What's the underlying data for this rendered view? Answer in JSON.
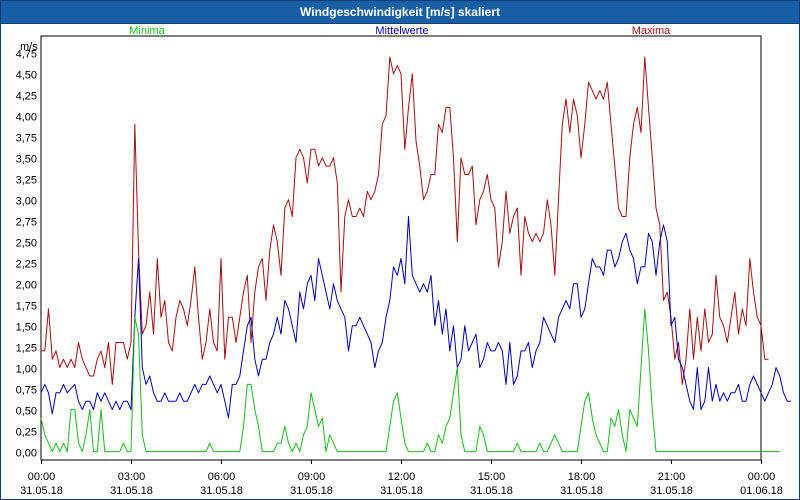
{
  "window": {
    "title": "Windgeschwindigkeit [m/s] skaliert"
  },
  "colors": {
    "minima": "#1db81d",
    "mittel": "#0000b4",
    "maxima": "#a01010",
    "titlebar": "#1a5ea5"
  },
  "chart_data": {
    "type": "line",
    "title": "Windgeschwindigkeit [m/s] skaliert",
    "ylabel": "m/s",
    "ylim": [
      -0.1,
      4.95
    ],
    "yticks": [
      "0,00",
      "0,25",
      "0,50",
      "0,75",
      "1,00",
      "1,25",
      "1,50",
      "1,75",
      "2,00",
      "2,25",
      "2,50",
      "2,75",
      "3,00",
      "3,25",
      "3,50",
      "3,75",
      "4,00",
      "4,25",
      "4,50",
      "4,75"
    ],
    "ytick_values": [
      0,
      0.25,
      0.5,
      0.75,
      1,
      1.25,
      1.5,
      1.75,
      2,
      2.25,
      2.5,
      2.75,
      3,
      3.25,
      3.5,
      3.75,
      4,
      4.25,
      4.5,
      4.75
    ],
    "xlim": [
      0,
      24
    ],
    "xticks": [
      {
        "hours": 0,
        "time": "00:00",
        "date": "31.05.18"
      },
      {
        "hours": 3,
        "time": "03:00",
        "date": "31.05.18"
      },
      {
        "hours": 6,
        "time": "06:00",
        "date": "31.05.18"
      },
      {
        "hours": 9,
        "time": "09:00",
        "date": "31.05.18"
      },
      {
        "hours": 12,
        "time": "12:00",
        "date": "31.05.18"
      },
      {
        "hours": 15,
        "time": "15:00",
        "date": "31.05.18"
      },
      {
        "hours": 18,
        "time": "18:00",
        "date": "31.05.18"
      },
      {
        "hours": 21,
        "time": "21:00",
        "date": "31.05.18"
      },
      {
        "hours": 24,
        "time": "00:00",
        "date": "01.06.18"
      }
    ],
    "x_interval_hours": 0.125,
    "series": [
      {
        "name": "Maxima",
        "color": "#a01010",
        "values": [
          1.2,
          1.2,
          1.7,
          1.1,
          1.2,
          1.0,
          1.1,
          1.0,
          1.1,
          1.0,
          1.3,
          1.1,
          1.0,
          0.9,
          0.9,
          1.1,
          1.2,
          1.0,
          1.3,
          0.8,
          1.3,
          1.3,
          1.3,
          1.1,
          1.3,
          3.9,
          2.4,
          1.4,
          1.5,
          1.9,
          1.4,
          2.3,
          1.6,
          1.8,
          1.3,
          1.2,
          1.6,
          1.8,
          1.7,
          1.5,
          1.8,
          2.2,
          1.6,
          1.1,
          1.3,
          1.7,
          1.3,
          1.2,
          2.3,
          1.1,
          1.6,
          1.6,
          1.3,
          1.6,
          1.9,
          2.1,
          1.3,
          1.9,
          2.2,
          2.3,
          1.8,
          2.4,
          2.7,
          2.5,
          2.1,
          2.9,
          3.0,
          2.8,
          3.5,
          3.6,
          3.5,
          3.2,
          3.6,
          3.6,
          3.4,
          3.5,
          3.4,
          3.4,
          3.5,
          3.2,
          1.9,
          2.8,
          3.0,
          2.8,
          2.8,
          2.9,
          2.8,
          3.1,
          3.0,
          3.1,
          3.3,
          3.9,
          4.0,
          4.7,
          4.5,
          4.6,
          4.5,
          3.6,
          4.1,
          4.5,
          3.7,
          3.4,
          3.0,
          3.1,
          3.3,
          3.3,
          3.9,
          3.8,
          4.1,
          4.1,
          3.5,
          2.5,
          3.5,
          3.3,
          3.3,
          3.4,
          2.7,
          3.0,
          3.1,
          3.3,
          3.0,
          2.9,
          2.2,
          2.5,
          3.1,
          2.6,
          2.8,
          2.9,
          2.1,
          2.8,
          2.6,
          2.5,
          2.6,
          2.5,
          2.6,
          3.0,
          2.7,
          2.1,
          3.0,
          3.9,
          4.2,
          3.8,
          4.2,
          4.0,
          3.5,
          3.9,
          4.4,
          4.3,
          4.2,
          4.3,
          4.2,
          4.4,
          3.9,
          3.4,
          2.9,
          2.8,
          2.8,
          3.5,
          3.9,
          4.1,
          3.8,
          4.7,
          4.1,
          3.5,
          2.9,
          2.7,
          1.8,
          1.9,
          1.6,
          1.1,
          1.3,
          0.8,
          1.1,
          1.7,
          1.1,
          1.6,
          1.2,
          1.7,
          1.3,
          1.4,
          2.1,
          1.6,
          1.5,
          1.3,
          1.6,
          1.9,
          1.4,
          1.7,
          1.5,
          2.3,
          1.9,
          1.6,
          1.5,
          1.1,
          1.1
        ]
      },
      {
        "name": "Mittelwerte",
        "color": "#0000b4",
        "values": [
          0.7,
          0.8,
          0.7,
          0.45,
          0.7,
          0.7,
          0.8,
          0.7,
          0.75,
          0.8,
          0.6,
          0.5,
          0.6,
          0.6,
          0.5,
          0.7,
          0.6,
          0.7,
          0.6,
          0.5,
          0.6,
          0.5,
          0.6,
          0.6,
          0.5,
          1.6,
          2.3,
          1.0,
          0.8,
          0.9,
          0.7,
          0.6,
          0.6,
          0.7,
          0.6,
          0.6,
          0.6,
          0.7,
          0.6,
          0.6,
          0.7,
          0.8,
          0.7,
          0.8,
          0.8,
          0.9,
          0.8,
          0.7,
          0.8,
          0.6,
          0.4,
          0.8,
          0.8,
          0.9,
          1.2,
          1.5,
          1.6,
          1.1,
          0.9,
          1.1,
          1.1,
          1.3,
          1.4,
          1.6,
          1.4,
          1.8,
          1.7,
          1.5,
          1.3,
          1.9,
          1.7,
          2.0,
          2.1,
          1.8,
          2.3,
          2.1,
          1.9,
          1.7,
          2.0,
          1.8,
          1.7,
          1.6,
          1.2,
          1.5,
          1.5,
          1.6,
          1.5,
          1.4,
          1.3,
          1.0,
          1.2,
          1.3,
          1.6,
          1.8,
          2.2,
          2.1,
          2.3,
          2.0,
          2.8,
          2.1,
          2.0,
          1.9,
          2.0,
          1.9,
          2.1,
          1.5,
          1.8,
          1.4,
          1.7,
          1.2,
          1.5,
          1.0,
          1.1,
          1.5,
          1.2,
          1.3,
          1.4,
          1.0,
          1.1,
          1.3,
          1.2,
          1.2,
          1.3,
          1.2,
          0.8,
          1.3,
          0.8,
          0.9,
          1.2,
          1.2,
          1.3,
          1.0,
          1.2,
          1.3,
          1.6,
          1.5,
          1.4,
          1.3,
          1.6,
          1.7,
          1.8,
          1.7,
          2.0,
          2.0,
          1.6,
          1.7,
          2.0,
          2.3,
          2.2,
          2.2,
          2.1,
          2.4,
          2.4,
          2.2,
          2.3,
          2.5,
          2.6,
          2.4,
          2.3,
          2.0,
          2.2,
          2.2,
          2.6,
          2.5,
          2.1,
          2.5,
          2.7,
          2.5,
          1.5,
          1.6,
          1.1,
          1.0,
          0.8,
          0.6,
          0.5,
          1.0,
          0.5,
          0.6,
          1.0,
          0.6,
          0.8,
          0.6,
          0.7,
          0.6,
          0.7,
          0.7,
          0.8,
          0.6,
          0.6,
          0.8,
          0.9,
          0.8,
          0.7,
          0.6,
          0.7,
          0.8,
          1.0,
          0.9,
          0.7,
          0.6,
          0.6
        ]
      },
      {
        "name": "Minima",
        "color": "#1db81d",
        "values": [
          0.4,
          0.2,
          0.1,
          0.0,
          0.1,
          0.0,
          0.1,
          0.0,
          0.5,
          0.5,
          0.1,
          0.0,
          0.2,
          0.5,
          0.0,
          0.0,
          0.5,
          0.0,
          0.0,
          0.0,
          0.0,
          0.0,
          0.1,
          0.0,
          0.0,
          1.6,
          1.4,
          0.2,
          0.0,
          0.0,
          0.0,
          0.0,
          0.0,
          0.0,
          0.0,
          0.0,
          0.0,
          0.0,
          0.0,
          0.0,
          0.0,
          0.0,
          0.0,
          0.0,
          0.0,
          0.1,
          0.0,
          0.0,
          0.0,
          0.0,
          0.0,
          0.0,
          0.0,
          0.0,
          0.3,
          0.8,
          0.8,
          0.5,
          0.3,
          0.0,
          0.0,
          0.0,
          0.0,
          0.1,
          0.1,
          0.3,
          0.1,
          0.0,
          0.1,
          0.0,
          0.2,
          0.3,
          0.7,
          0.5,
          0.3,
          0.4,
          0.0,
          0.2,
          0.1,
          0.0,
          0.0,
          0.0,
          0.0,
          0.0,
          0.0,
          0.0,
          0.0,
          0.0,
          0.0,
          0.0,
          0.0,
          0.0,
          0.0,
          0.3,
          0.6,
          0.7,
          0.4,
          0.1,
          0.0,
          0.0,
          0.0,
          0.0,
          0.0,
          0.1,
          0.0,
          0.0,
          0.2,
          0.1,
          0.3,
          0.4,
          0.7,
          1.0,
          0.2,
          0.0,
          0.0,
          0.0,
          0.0,
          0.3,
          0.2,
          0.0,
          0.0,
          0.0,
          0.0,
          0.0,
          0.0,
          0.0,
          0.0,
          0.1,
          0.0,
          0.0,
          0.0,
          0.0,
          0.0,
          0.1,
          0.0,
          0.0,
          0.1,
          0.2,
          0.1,
          0.0,
          0.0,
          0.0,
          0.0,
          0.0,
          0.3,
          0.6,
          0.7,
          0.4,
          0.2,
          0.1,
          0.0,
          0.0,
          0.4,
          0.3,
          0.5,
          0.2,
          0.0,
          0.5,
          0.4,
          0.3,
          1.0,
          1.7,
          1.2,
          0.5,
          0.0,
          0.0,
          0.0,
          0.0,
          0.0,
          0.0,
          0.0,
          0.0,
          0.0,
          0.0,
          0.0,
          0.0,
          0.0,
          0.0,
          0.0,
          0.0,
          0.0,
          0.0,
          0.0,
          0.0,
          0.0,
          0.0,
          0.0,
          0.0,
          0.0,
          0.0,
          0.0,
          0.0,
          0.0,
          0.0,
          0.0,
          0.0,
          0.0,
          0.0
        ]
      }
    ],
    "legend": [
      "Minima",
      "Mittelwerte",
      "Maxima"
    ]
  }
}
